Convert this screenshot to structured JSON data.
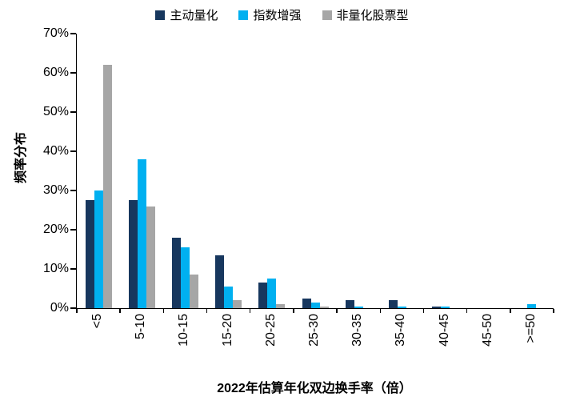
{
  "chart_data": {
    "type": "bar",
    "title": "",
    "xlabel": "2022年估算年化双边换手率（倍）",
    "ylabel": "频率分布",
    "ylim": [
      0,
      70
    ],
    "ytick_labels": [
      "0%",
      "10%",
      "20%",
      "30%",
      "40%",
      "50%",
      "60%",
      "70%"
    ],
    "grid": false,
    "legend_position": "top",
    "categories": [
      "<5",
      "5-10",
      "10-15",
      "15-20",
      "20-25",
      "25-30",
      "30-35",
      "35-40",
      "40-45",
      "45-50",
      ">=50"
    ],
    "series": [
      {
        "name": "主动量化",
        "color": "#17375E",
        "values": [
          27.5,
          27.5,
          18.0,
          13.5,
          6.5,
          2.5,
          2.0,
          2.0,
          0.5,
          0,
          0
        ]
      },
      {
        "name": "指数增强",
        "color": "#00B0F0",
        "values": [
          30.0,
          38.0,
          15.5,
          5.5,
          7.5,
          1.5,
          0.5,
          0.5,
          0.5,
          0,
          1.0
        ]
      },
      {
        "name": "非量化股票型",
        "color": "#A6A6A6",
        "values": [
          62.0,
          26.0,
          8.5,
          2.0,
          1.0,
          0.5,
          0,
          0,
          0,
          0,
          0
        ]
      }
    ]
  },
  "colors": {
    "axis": "#000000",
    "background": "#FFFFFF"
  }
}
